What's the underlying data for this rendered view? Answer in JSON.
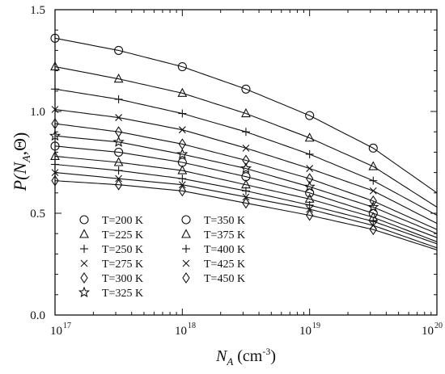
{
  "chart_data": {
    "type": "scatter",
    "x_scale": "log",
    "xlim": [
      1e+17,
      1e+20
    ],
    "ylim": [
      0,
      1.5
    ],
    "grid": false,
    "legend_placement": "bottom-left",
    "y_ticks": [
      "0.0",
      "0.5",
      "1.0",
      "1.5"
    ],
    "x_ticks": [
      {
        "base": "10",
        "exp": "17"
      },
      {
        "base": "10",
        "exp": "18"
      },
      {
        "base": "10",
        "exp": "19"
      },
      {
        "base": "10",
        "exp": "20"
      }
    ],
    "ylabel": {
      "pre": "P(",
      "sub_var": "N",
      "sub": "A",
      "post": ",Θ)"
    },
    "xlabel": {
      "var": "N",
      "sub": "A",
      "unit_pre": " (cm",
      "unit_exp": "-3",
      "unit_post": ")"
    },
    "x": [
      1e+17,
      3.16e+17,
      1e+18,
      3.16e+18,
      1e+19,
      3.16e+19,
      1e+20
    ],
    "series": [
      {
        "name": "T=200 K",
        "marker": "circle",
        "values": [
          1.36,
          1.3,
          1.22,
          1.11,
          0.98,
          0.82,
          0.6
        ]
      },
      {
        "name": "T=225 K",
        "marker": "triangle",
        "values": [
          1.22,
          1.16,
          1.09,
          0.99,
          0.87,
          0.73,
          0.53
        ]
      },
      {
        "name": "T=250 K",
        "marker": "plus",
        "values": [
          1.11,
          1.06,
          0.99,
          0.9,
          0.79,
          0.66,
          0.49
        ]
      },
      {
        "name": "T=275 K",
        "marker": "cross",
        "values": [
          1.01,
          0.97,
          0.91,
          0.82,
          0.72,
          0.61,
          0.45
        ]
      },
      {
        "name": "T=300 K",
        "marker": "diamond",
        "values": [
          0.94,
          0.9,
          0.84,
          0.76,
          0.67,
          0.56,
          0.42
        ]
      },
      {
        "name": "T=325 K",
        "marker": "star",
        "values": [
          0.88,
          0.85,
          0.79,
          0.72,
          0.63,
          0.53,
          0.4
        ]
      },
      {
        "name": "T=350 K",
        "marker": "circle",
        "values": [
          0.83,
          0.8,
          0.75,
          0.68,
          0.6,
          0.5,
          0.38
        ]
      },
      {
        "name": "T=375 K",
        "marker": "triangle",
        "values": [
          0.78,
          0.75,
          0.71,
          0.64,
          0.57,
          0.48,
          0.36
        ]
      },
      {
        "name": "T=400 K",
        "marker": "plus",
        "values": [
          0.74,
          0.71,
          0.67,
          0.61,
          0.54,
          0.46,
          0.35
        ]
      },
      {
        "name": "T=425 K",
        "marker": "cross",
        "values": [
          0.7,
          0.67,
          0.64,
          0.58,
          0.52,
          0.44,
          0.33
        ]
      },
      {
        "name": "T=450 K",
        "marker": "diamond",
        "values": [
          0.66,
          0.64,
          0.61,
          0.55,
          0.49,
          0.42,
          0.32
        ]
      }
    ]
  }
}
